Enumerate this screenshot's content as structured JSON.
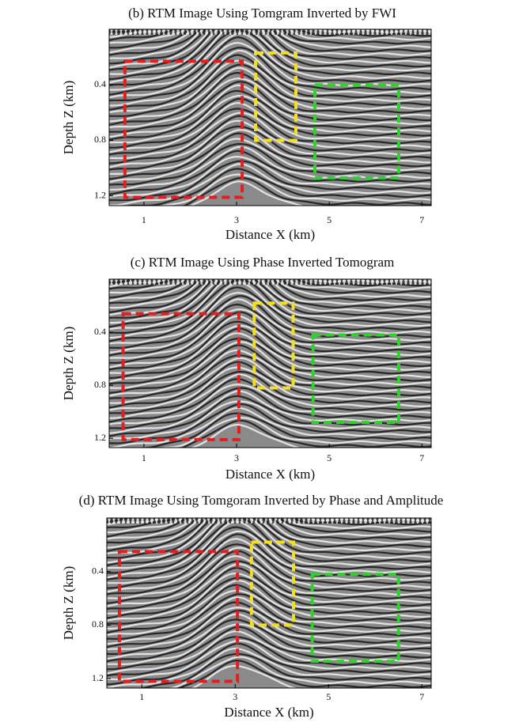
{
  "chart_data": [
    {
      "type": "image",
      "title": "(b) RTM Image Using Tomgram Inverted by FWI",
      "x_label": "Distance X (km)",
      "y_label": "Depth Z (km)",
      "xlim": [
        0.25,
        7.2
      ],
      "ylim": [
        0,
        1.27
      ],
      "y_inverted": true,
      "xticks": [
        1,
        3,
        5,
        7
      ],
      "yticks": [
        0.4,
        0.8,
        1.2
      ],
      "regions": [
        {
          "color": "#e02020",
          "x": [
            0.59,
            3.12
          ],
          "y": [
            0.23,
            1.21
          ]
        },
        {
          "color": "#f0e020",
          "x": [
            3.41,
            4.28
          ],
          "y": [
            0.17,
            0.8
          ]
        },
        {
          "color": "#30d030",
          "x": [
            4.69,
            6.5
          ],
          "y": [
            0.4,
            1.07
          ]
        }
      ]
    },
    {
      "type": "image",
      "title": "(c) RTM Image Using Phase Inverted Tomogram",
      "x_label": "Distance X (km)",
      "y_label": "Depth Z (km)",
      "xlim": [
        0.25,
        7.2
      ],
      "ylim": [
        0,
        1.27
      ],
      "y_inverted": true,
      "xticks": [
        1,
        3,
        5,
        7
      ],
      "yticks": [
        0.4,
        0.8,
        1.2
      ],
      "regions": [
        {
          "color": "#e02020",
          "x": [
            0.55,
            3.05
          ],
          "y": [
            0.26,
            1.21
          ]
        },
        {
          "color": "#f0e020",
          "x": [
            3.38,
            4.22
          ],
          "y": [
            0.18,
            0.82
          ]
        },
        {
          "color": "#30d030",
          "x": [
            4.65,
            6.5
          ],
          "y": [
            0.42,
            1.08
          ]
        }
      ]
    },
    {
      "type": "image",
      "title": "(d) RTM Image Using Tomgoram Inverted by Phase and Amplitude",
      "x_label": "Distance X (km)",
      "y_label": "Depth Z (km)",
      "xlim": [
        0.25,
        7.2
      ],
      "ylim": [
        0,
        1.27
      ],
      "y_inverted": true,
      "xticks": [
        1,
        3,
        5,
        7
      ],
      "yticks": [
        0.4,
        0.8,
        1.2
      ],
      "regions": [
        {
          "color": "#e02020",
          "x": [
            0.52,
            3.05
          ],
          "y": [
            0.25,
            1.22
          ]
        },
        {
          "color": "#f0e020",
          "x": [
            3.35,
            4.25
          ],
          "y": [
            0.18,
            0.8
          ]
        },
        {
          "color": "#30d030",
          "x": [
            4.65,
            6.5
          ],
          "y": [
            0.42,
            1.07
          ]
        }
      ]
    }
  ]
}
